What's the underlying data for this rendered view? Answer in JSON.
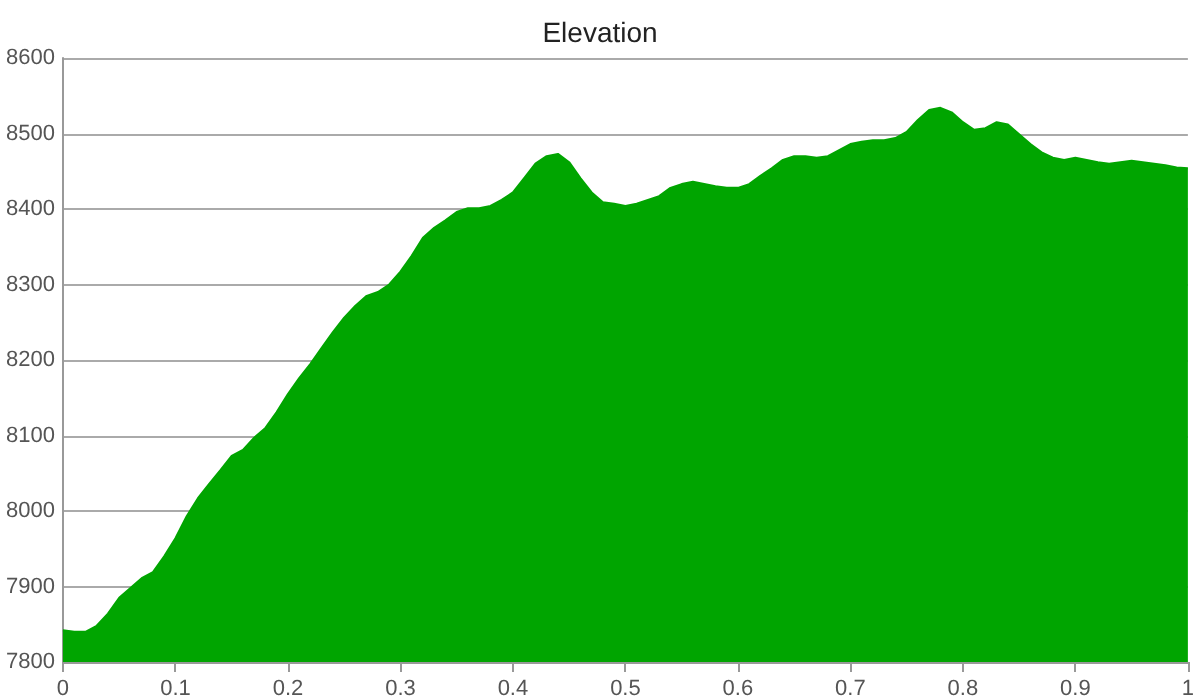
{
  "chart_data": {
    "type": "area",
    "title": "Elevation",
    "x": [
      0,
      0.01,
      0.02,
      0.03,
      0.04,
      0.05,
      0.06,
      0.07,
      0.08,
      0.09,
      0.1,
      0.11,
      0.12,
      0.13,
      0.14,
      0.15,
      0.16,
      0.17,
      0.18,
      0.19,
      0.2,
      0.21,
      0.22,
      0.23,
      0.24,
      0.25,
      0.26,
      0.27,
      0.28,
      0.29,
      0.3,
      0.31,
      0.32,
      0.33,
      0.34,
      0.35,
      0.36,
      0.37,
      0.38,
      0.39,
      0.4,
      0.41,
      0.42,
      0.43,
      0.44,
      0.45,
      0.46,
      0.47,
      0.48,
      0.49,
      0.5,
      0.51,
      0.52,
      0.53,
      0.54,
      0.55,
      0.56,
      0.57,
      0.58,
      0.59,
      0.6,
      0.61,
      0.62,
      0.63,
      0.64,
      0.65,
      0.66,
      0.67,
      0.68,
      0.69,
      0.7,
      0.71,
      0.72,
      0.73,
      0.74,
      0.75,
      0.76,
      0.77,
      0.78,
      0.79,
      0.8,
      0.81,
      0.82,
      0.83,
      0.84,
      0.85,
      0.86,
      0.87,
      0.88,
      0.89,
      0.9,
      0.91,
      0.92,
      0.93,
      0.94,
      0.95,
      0.96,
      0.97,
      0.98,
      0.99,
      1
    ],
    "values": [
      7842,
      7840,
      7840,
      7848,
      7864,
      7885,
      7898,
      7911,
      7919,
      7940,
      7964,
      7993,
      8017,
      8036,
      8054,
      8073,
      8081,
      8097,
      8110,
      8131,
      8155,
      8176,
      8195,
      8216,
      8237,
      8256,
      8272,
      8285,
      8290,
      8300,
      8317,
      8338,
      8362,
      8375,
      8385,
      8396,
      8401,
      8401,
      8404,
      8412,
      8422,
      8441,
      8460,
      8470,
      8473,
      8462,
      8441,
      8422,
      8409,
      8407,
      8404,
      8407,
      8412,
      8417,
      8428,
      8433,
      8436,
      8433,
      8430,
      8428,
      8428,
      8433,
      8444,
      8454,
      8465,
      8470,
      8470,
      8468,
      8470,
      8478,
      8486,
      8489,
      8491,
      8491,
      8494,
      8502,
      8518,
      8531,
      8534,
      8528,
      8515,
      8505,
      8507,
      8515,
      8512,
      8499,
      8486,
      8475,
      8468,
      8465,
      8468,
      8465,
      8462,
      8460,
      8462,
      8464,
      8462,
      8460,
      8458,
      8455,
      8454
    ],
    "color": "#00a500",
    "xlim": [
      0,
      1
    ],
    "xticks": [
      0,
      0.1,
      0.2,
      0.3,
      0.4,
      0.5,
      0.6,
      0.7,
      0.8,
      0.9,
      1
    ],
    "ylim": [
      7800,
      8600
    ],
    "yticks": [
      7800,
      7900,
      8000,
      8100,
      8200,
      8300,
      8400,
      8500,
      8600
    ],
    "grid": "y"
  }
}
